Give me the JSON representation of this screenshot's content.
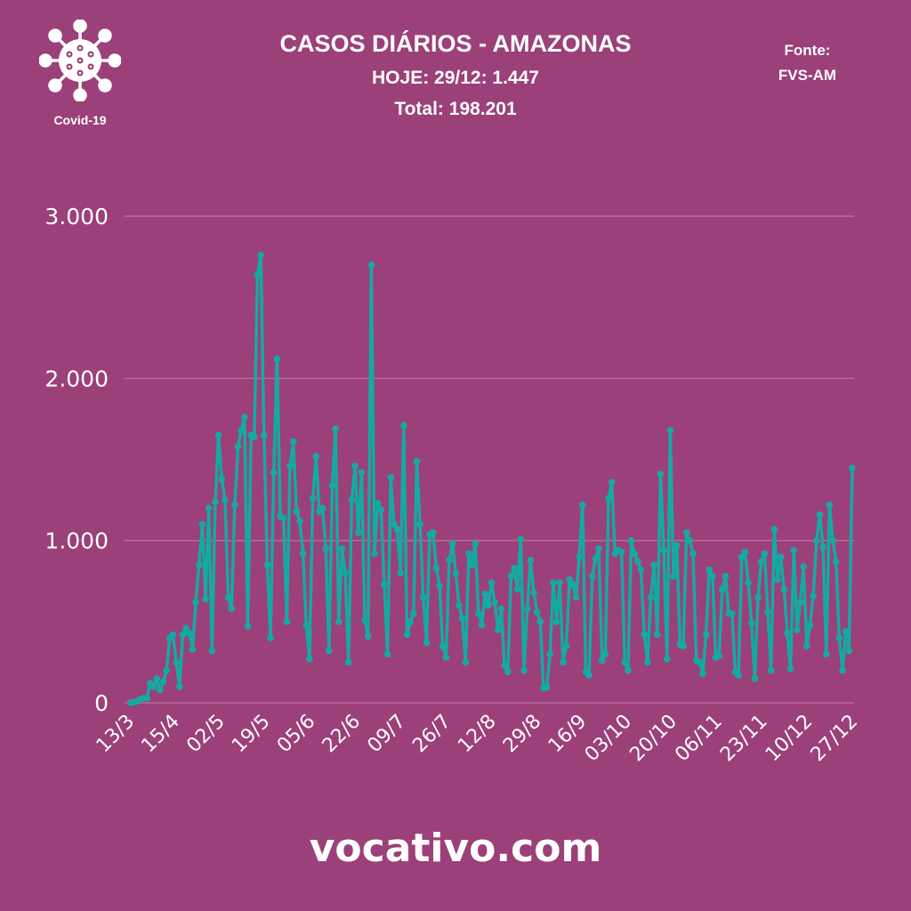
{
  "header": {
    "title": "CASOS DIÁRIOS - AMAZONAS",
    "today": "HOJE: 29/12: 1.447",
    "total": "Total: 198.201",
    "source_label": "Fonte:",
    "source": "FVS-AM"
  },
  "logo": {
    "icon": "virus-icon",
    "text": "Covid-19"
  },
  "footer": {
    "text": "vocativo.com"
  },
  "colors": {
    "background": "#9b4079",
    "line": "#14aaa3",
    "grid": "#b56d98",
    "text": "#ffffff"
  },
  "chart_data": {
    "type": "line",
    "title": "CASOS DIÁRIOS - AMAZONAS",
    "xlabel": "",
    "ylabel": "",
    "xlim": [
      "13/3",
      "29/12"
    ],
    "ylim": [
      0,
      3000
    ],
    "y_ticks": [
      {
        "v": 0,
        "label": "0"
      },
      {
        "v": 1000,
        "label": "1.000"
      },
      {
        "v": 2000,
        "label": "2.000"
      },
      {
        "v": 3000,
        "label": "3.000"
      }
    ],
    "x_ticks": [
      "13/3",
      "15/4",
      "02/5",
      "19/5",
      "05/6",
      "22/6",
      "09/7",
      "26/7",
      "12/8",
      "29/8",
      "16/9",
      "03/10",
      "20/10",
      "06/11",
      "23/11",
      "10/12",
      "27/12"
    ],
    "grid": true,
    "markers": true,
    "values": [
      0,
      5,
      10,
      20,
      30,
      30,
      120,
      100,
      150,
      80,
      130,
      200,
      400,
      420,
      250,
      100,
      420,
      460,
      430,
      330,
      620,
      850,
      1100,
      640,
      1200,
      320,
      1240,
      1650,
      1380,
      1250,
      650,
      580,
      1220,
      1580,
      1680,
      1760,
      470,
      1650,
      1640,
      2640,
      2760,
      1650,
      850,
      400,
      1420,
      2120,
      1150,
      1140,
      500,
      1460,
      1610,
      1180,
      1120,
      920,
      480,
      270,
      1260,
      1520,
      1180,
      1200,
      950,
      320,
      1340,
      1690,
      500,
      950,
      800,
      250,
      1250,
      1460,
      1050,
      1420,
      510,
      410,
      2700,
      920,
      1230,
      1190,
      730,
      300,
      1390,
      1100,
      1070,
      800,
      1710,
      420,
      500,
      550,
      1490,
      1100,
      650,
      370,
      1040,
      1050,
      830,
      720,
      350,
      280,
      880,
      980,
      800,
      600,
      520,
      250,
      920,
      850,
      980,
      550,
      480,
      670,
      600,
      740,
      620,
      450,
      580,
      230,
      190,
      780,
      830,
      700,
      1010,
      200,
      580,
      880,
      680,
      560,
      500,
      90,
      95,
      300,
      740,
      500,
      740,
      250,
      350,
      760,
      730,
      650,
      900,
      1220,
      190,
      170,
      780,
      890,
      950,
      260,
      300,
      1260,
      1360,
      920,
      940,
      930,
      250,
      200,
      1000,
      920,
      870,
      820,
      420,
      250,
      650,
      850,
      420,
      1410,
      940,
      270,
      1680,
      780,
      970,
      360,
      350,
      1050,
      1000,
      920,
      260,
      250,
      180,
      420,
      820,
      780,
      280,
      290,
      700,
      780,
      550,
      550,
      190,
      170,
      900,
      930,
      740,
      490,
      150,
      650,
      870,
      920,
      560,
      200,
      1070,
      760,
      900,
      700,
      430,
      210,
      940,
      450,
      620,
      840,
      350,
      480,
      660,
      1000,
      1160,
      960,
      300,
      1220,
      1000,
      870,
      400,
      200,
      440,
      320,
      1447
    ]
  }
}
